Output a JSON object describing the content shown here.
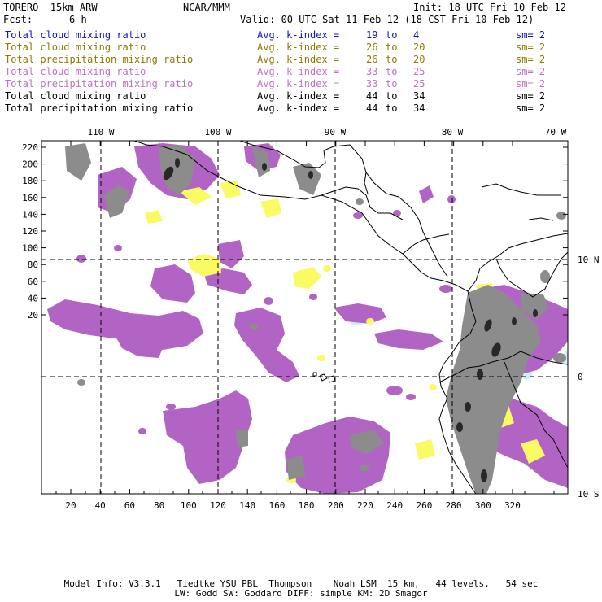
{
  "header": {
    "model": "TORERO  15km ARW",
    "center": "NCAR/MMM",
    "init": "Init: 18 UTC Fri 10 Feb 12",
    "fcst_label": "Fcst:",
    "fcst_value": "6 h",
    "valid": "Valid: 00 UTC Sat 11 Feb 12 (18 CST Fri 10 Feb 12)"
  },
  "legend": [
    {
      "field": "Total cloud mixing ratio",
      "index_label": "Avg. k-index =",
      "from": "19",
      "to_word": "to",
      "to": "4",
      "sm": "sm= 2",
      "color": "#1010c8"
    },
    {
      "field": "Total cloud mixing ratio",
      "index_label": "Avg. k-index =",
      "from": "26",
      "to_word": "to",
      "to": "20",
      "sm": "sm= 2",
      "color": "#8c7a00"
    },
    {
      "field": "Total precipitation mixing ratio",
      "index_label": "Avg. k-index =",
      "from": "26",
      "to_word": "to",
      "to": "20",
      "sm": "sm= 2",
      "color": "#8c7a00"
    },
    {
      "field": "Total cloud mixing ratio",
      "index_label": "Avg. k-index =",
      "from": "33",
      "to_word": "to",
      "to": "25",
      "sm": "sm= 2",
      "color": "#c070c8"
    },
    {
      "field": "Total precipitation mixing ratio",
      "index_label": "Avg. k-index =",
      "from": "33",
      "to_word": "to",
      "to": "25",
      "sm": "sm= 2",
      "color": "#c070c8"
    },
    {
      "field": "Total cloud mixing ratio",
      "index_label": "Avg. k-index =",
      "from": "44",
      "to_word": "to",
      "to": "34",
      "sm": "sm= 2",
      "color": "#000000"
    },
    {
      "field": "Total precipitation mixing ratio",
      "index_label": "Avg. k-index =",
      "from": "44",
      "to_word": "to",
      "to": "34",
      "sm": "sm= 2",
      "color": "#000000"
    }
  ],
  "map": {
    "top_labels": [
      "110 W",
      "100 W",
      "90 W",
      "80 W",
      "70 W"
    ],
    "right_labels": [
      "10 N",
      "0",
      "10 S"
    ],
    "left_ticks": [
      "220",
      "200",
      "180",
      "160",
      "140",
      "120",
      "100",
      "80",
      "60",
      "40",
      "20"
    ],
    "bottom_ticks": [
      "20",
      "40",
      "60",
      "80",
      "100",
      "120",
      "140",
      "160",
      "180",
      "200",
      "220",
      "240",
      "260",
      "280",
      "300",
      "320"
    ],
    "colors": {
      "purple": "#b264c4",
      "yellow": "#fafa64",
      "gray": "#8c8c8c",
      "lightblue": "#d2ecfa",
      "dark": "#282828",
      "coast": "#000000"
    }
  },
  "footer": {
    "line1": "Model Info: V3.3.1   Tiedtke YSU PBL  Thompson    Noah LSM  15 km,   44 levels,   54 sec",
    "line2": "LW: Godd SW: Goddard DIFF: simple KM: 2D Smagor"
  }
}
